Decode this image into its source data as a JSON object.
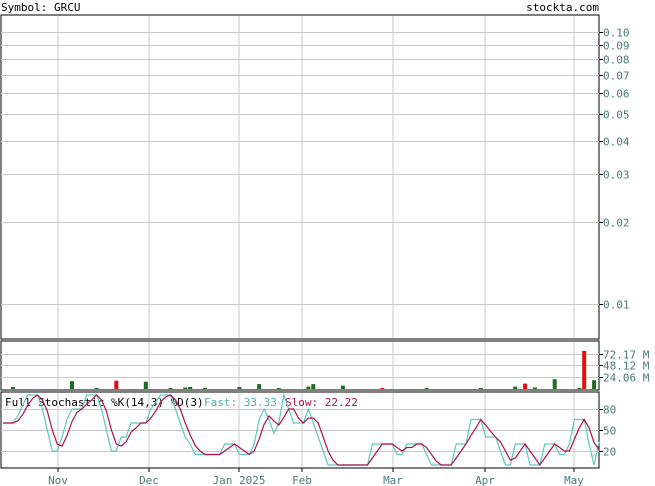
{
  "header": {
    "symbol_label": "Symbol: GRCU",
    "site": "stockta.com"
  },
  "stochastic_legend": {
    "title": "Full Stochastic %K(14,3) %D(3)",
    "fast_label": "Fast: 33.33",
    "slow_label": "Slow: 22.22"
  },
  "colors": {
    "up_bar": "#1f6b1f",
    "down_bar": "#dd1111",
    "fast_line": "#5cc8c0",
    "slow_line": "#b0104a",
    "grid": "#c8c8c8",
    "axis_text": "#4a7a7a",
    "header_text": "#6a8a8a",
    "legend_fast": "#4cb0a8",
    "legend_slow": "#b0104a"
  },
  "chart_data": [
    {
      "type": "line",
      "title": "",
      "y_scale": "log",
      "ylim": [
        0.0075,
        0.115
      ],
      "y_ticks": [
        "0.10",
        "0.09",
        "0.08",
        "0.07",
        "0.06",
        "0.05",
        "0.04",
        "0.03",
        "0.02",
        "0.01"
      ],
      "y_tick_values": [
        0.1,
        0.09,
        0.08,
        0.07,
        0.06,
        0.05,
        0.04,
        0.03,
        0.02,
        0.01
      ],
      "x_ticks": [
        "Nov",
        "Dec",
        "Jan 2025",
        "Feb",
        "Mar",
        "Apr",
        "May"
      ],
      "series": [],
      "grid": true
    },
    {
      "type": "bar",
      "title": "",
      "ylim": [
        0,
        96.2
      ],
      "y_ticks": [
        "72.17 M",
        "48.12 M",
        "24.06 M"
      ],
      "y_tick_values": [
        72.17,
        48.12,
        24.06
      ],
      "bars": [
        {
          "i": 2,
          "v": 4,
          "dir": "up"
        },
        {
          "i": 14,
          "v": 16,
          "dir": "up"
        },
        {
          "i": 19,
          "v": 2,
          "dir": "up"
        },
        {
          "i": 23,
          "v": 17,
          "dir": "down"
        },
        {
          "i": 29,
          "v": 15,
          "dir": "up"
        },
        {
          "i": 34,
          "v": 2,
          "dir": "up"
        },
        {
          "i": 37,
          "v": 3,
          "dir": "up"
        },
        {
          "i": 38,
          "v": 4,
          "dir": "up"
        },
        {
          "i": 41,
          "v": 2,
          "dir": "up"
        },
        {
          "i": 48,
          "v": 4,
          "dir": "up"
        },
        {
          "i": 52,
          "v": 10,
          "dir": "up"
        },
        {
          "i": 56,
          "v": 2,
          "dir": "up"
        },
        {
          "i": 62,
          "v": 5,
          "dir": "up"
        },
        {
          "i": 63,
          "v": 10,
          "dir": "up"
        },
        {
          "i": 69,
          "v": 7,
          "dir": "up"
        },
        {
          "i": 77,
          "v": 2,
          "dir": "down"
        },
        {
          "i": 86,
          "v": 2,
          "dir": "up"
        },
        {
          "i": 97,
          "v": 2,
          "dir": "up"
        },
        {
          "i": 104,
          "v": 5,
          "dir": "up"
        },
        {
          "i": 106,
          "v": 11,
          "dir": "down"
        },
        {
          "i": 108,
          "v": 3,
          "dir": "up"
        },
        {
          "i": 112,
          "v": 20,
          "dir": "up"
        },
        {
          "i": 117,
          "v": 2,
          "dir": "up"
        },
        {
          "i": 118,
          "v": 78,
          "dir": "down"
        },
        {
          "i": 120,
          "v": 18,
          "dir": "up"
        }
      ],
      "grid": true
    },
    {
      "type": "line",
      "title": "Full Stochastic %K(14,3) %D(3)",
      "ylim": [
        0,
        100
      ],
      "y_ticks": [
        "80",
        "50",
        "20"
      ],
      "y_tick_values": [
        80,
        50,
        20
      ],
      "series": [
        {
          "name": "Fast: 33.33",
          "values": [
            60,
            60,
            60,
            70,
            85,
            100,
            100,
            100,
            80,
            50,
            20,
            20,
            40,
            65,
            80,
            80,
            80,
            100,
            100,
            100,
            80,
            50,
            20,
            20,
            40,
            40,
            60,
            60,
            60,
            60,
            80,
            90,
            100,
            100,
            100,
            80,
            60,
            40,
            30,
            15,
            15,
            15,
            15,
            15,
            15,
            30,
            30,
            30,
            15,
            15,
            15,
            30,
            65,
            80,
            65,
            45,
            60,
            100,
            80,
            60,
            60,
            60,
            80,
            60,
            40,
            20,
            0,
            0,
            0,
            0,
            0,
            0,
            0,
            0,
            0,
            30,
            30,
            30,
            30,
            30,
            15,
            15,
            30,
            30,
            30,
            30,
            15,
            0,
            0,
            0,
            0,
            0,
            30,
            30,
            30,
            65,
            65,
            65,
            40,
            40,
            40,
            20,
            0,
            0,
            30,
            30,
            30,
            0,
            0,
            0,
            30,
            30,
            30,
            15,
            15,
            30,
            65,
            65,
            65,
            30,
            0,
            33
          ]
        },
        {
          "name": "Slow: 22.22",
          "values": [
            60,
            60,
            60,
            63,
            72,
            85,
            95,
            100,
            93,
            77,
            50,
            30,
            27,
            42,
            62,
            75,
            80,
            87,
            93,
            100,
            93,
            77,
            50,
            30,
            27,
            33,
            47,
            53,
            60,
            60,
            67,
            77,
            90,
            97,
            100,
            93,
            80,
            60,
            43,
            28,
            20,
            15,
            15,
            15,
            15,
            20,
            25,
            30,
            25,
            20,
            15,
            20,
            37,
            58,
            70,
            63,
            57,
            68,
            80,
            80,
            67,
            60,
            67,
            67,
            60,
            40,
            20,
            7,
            0,
            0,
            0,
            0,
            0,
            0,
            0,
            10,
            20,
            30,
            30,
            30,
            25,
            20,
            25,
            25,
            30,
            30,
            25,
            15,
            5,
            0,
            0,
            0,
            10,
            20,
            30,
            42,
            53,
            65,
            57,
            48,
            40,
            33,
            20,
            7,
            10,
            20,
            30,
            20,
            10,
            0,
            10,
            20,
            30,
            25,
            20,
            20,
            37,
            53,
            65,
            53,
            32,
            22
          ]
        }
      ],
      "grid": true
    }
  ]
}
